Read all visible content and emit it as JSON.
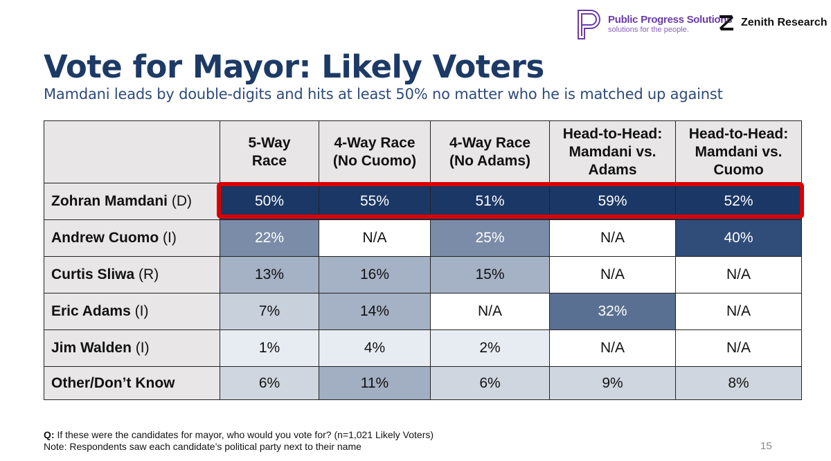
{
  "logos": {
    "ppsName": "Public Progress Solutions",
    "ppsTagline": "solutions for the people.",
    "zenith": "Zenith Research"
  },
  "title": "Vote for Mayor: Likely Voters",
  "subtitle": "Mamdani leads by double-digits and hits at least 50% no matter who he is matched up against",
  "chart_data": {
    "type": "table",
    "columns": [
      "5-Way\nRace",
      "4-Way Race\n(No Cuomo)",
      "4-Way Race\n(No Adams)",
      "Head-to-Head:\nMamdani vs.\nAdams",
      "Head-to-Head:\nMamdani vs.\nCuomo"
    ],
    "rows": [
      {
        "name": "Zohran Mamdani",
        "party": "(D)",
        "values": [
          "50%",
          "55%",
          "51%",
          "59%",
          "52%"
        ],
        "colors": [
          "#1b3765",
          "#1b3765",
          "#1b3765",
          "#1b3765",
          "#1b3765"
        ],
        "highlighted": true
      },
      {
        "name": "Andrew Cuomo",
        "party": "(I)",
        "values": [
          "22%",
          "N/A",
          "25%",
          "N/A",
          "40%"
        ],
        "colors": [
          "#7a8ca8",
          "#ffffff",
          "#7a8ca8",
          "#ffffff",
          "#2f4d78"
        ]
      },
      {
        "name": "Curtis Sliwa",
        "party": "(R)",
        "values": [
          "13%",
          "16%",
          "15%",
          "N/A",
          "N/A"
        ],
        "colors": [
          "#a5b1c5",
          "#a5b1c5",
          "#a5b1c5",
          "#ffffff",
          "#ffffff"
        ]
      },
      {
        "name": "Eric Adams",
        "party": "(I)",
        "values": [
          "7%",
          "14%",
          "N/A",
          "32%",
          "N/A"
        ],
        "colors": [
          "#c8d0dc",
          "#a5b1c5",
          "#ffffff",
          "#5a7092",
          "#ffffff"
        ]
      },
      {
        "name": "Jim Walden",
        "party": "(I)",
        "values": [
          "1%",
          "4%",
          "2%",
          "N/A",
          "N/A"
        ],
        "colors": [
          "#e7ebf2",
          "#e7ebf2",
          "#e7ebf2",
          "#ffffff",
          "#ffffff"
        ]
      },
      {
        "name": "Other/Don’t Know",
        "party": "",
        "values": [
          "6%",
          "11%",
          "6%",
          "9%",
          "8%"
        ],
        "colors": [
          "#d0d6e0",
          "#a2aec2",
          "#d0d6e0",
          "#d0d6e0",
          "#d0d6e0"
        ]
      }
    ]
  },
  "footnote": {
    "qLabel": "Q:",
    "question": " If these were the candidates for mayor, who would you vote for? (n=1,021 Likely Voters)",
    "note": "Note: Respondents saw each candidate’s political party next to their name"
  },
  "pageNumber": "15"
}
